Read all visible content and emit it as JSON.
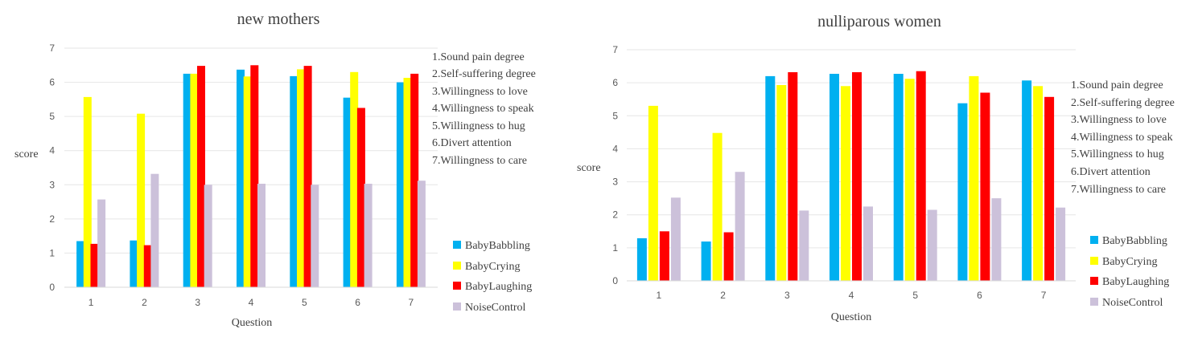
{
  "chart_data": [
    {
      "type": "bar",
      "title": "new mothers",
      "xlabel": "Question",
      "ylabel": "score",
      "ylim": [
        0,
        7
      ],
      "yticks": [
        0,
        1,
        2,
        3,
        4,
        5,
        6,
        7
      ],
      "categories": [
        "1",
        "2",
        "3",
        "4",
        "5",
        "6",
        "7"
      ],
      "series": [
        {
          "name": "BabyBabbling",
          "color": "#00b0f0",
          "values": [
            1.35,
            1.37,
            6.25,
            6.37,
            6.18,
            5.55,
            6.0
          ]
        },
        {
          "name": "BabyCrying",
          "color": "#ffff00",
          "values": [
            5.57,
            5.08,
            6.25,
            6.17,
            6.38,
            6.3,
            6.13
          ]
        },
        {
          "name": "BabyLaughing",
          "color": "#ff0000",
          "values": [
            1.27,
            1.23,
            6.48,
            6.5,
            6.48,
            5.25,
            6.25
          ]
        },
        {
          "name": "NoiseControl",
          "color": "#ccc1da",
          "values": [
            2.57,
            3.32,
            3.0,
            3.03,
            3.0,
            3.03,
            3.12
          ]
        }
      ],
      "legend_position": "right",
      "question_key": [
        "1.Sound pain degree",
        "2.Self-suffering degree",
        "3.Willingness to love",
        "4.Willingness to speak",
        "5.Willingness to hug",
        "6.Divert attention",
        "7.Willingness to care"
      ]
    },
    {
      "type": "bar",
      "title": "nulliparous women",
      "xlabel": "Question",
      "ylabel": "score",
      "ylim": [
        0,
        7
      ],
      "yticks": [
        0,
        1,
        2,
        3,
        4,
        5,
        6,
        7
      ],
      "categories": [
        "1",
        "2",
        "3",
        "4",
        "5",
        "6",
        "7"
      ],
      "series": [
        {
          "name": "BabyBabbling",
          "color": "#00b0f0",
          "values": [
            1.29,
            1.19,
            6.2,
            6.27,
            6.27,
            5.38,
            6.07
          ]
        },
        {
          "name": "BabyCrying",
          "color": "#ffff00",
          "values": [
            5.3,
            4.48,
            5.93,
            5.9,
            6.12,
            6.2,
            5.9
          ]
        },
        {
          "name": "BabyLaughing",
          "color": "#ff0000",
          "values": [
            1.5,
            1.47,
            6.32,
            6.32,
            6.35,
            5.7,
            5.57
          ]
        },
        {
          "name": "NoiseControl",
          "color": "#ccc1da",
          "values": [
            2.52,
            3.3,
            2.13,
            2.25,
            2.15,
            2.5,
            2.22
          ]
        }
      ],
      "legend_position": "right",
      "question_key": [
        "1.Sound pain degree",
        "2.Self-suffering degree",
        "3.Willingness to love",
        "4.Willingness to speak",
        "5.Willingness to hug",
        "6.Divert attention",
        "7.Willingness to care"
      ]
    }
  ]
}
